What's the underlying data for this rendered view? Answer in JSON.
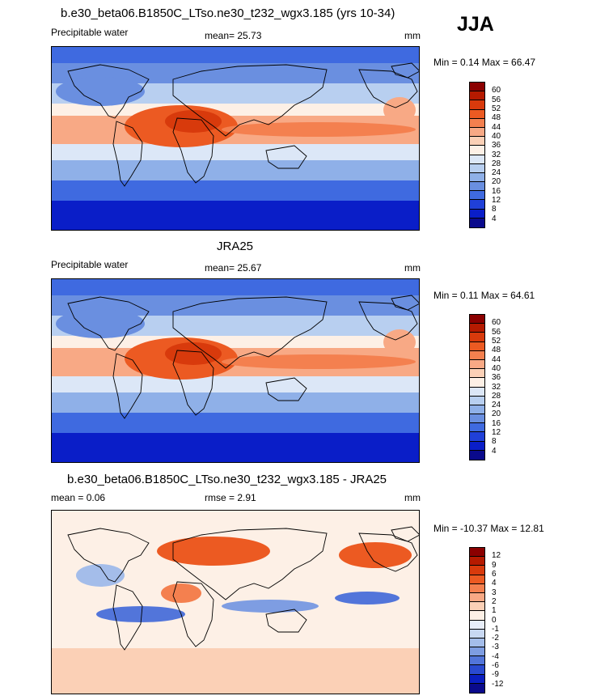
{
  "season": "JJA",
  "panels": [
    {
      "title": "b.e30_beta06.B1850C_LTso.ne30_t232_wgx3.185 (yrs 10-34)",
      "left": "Precipitable water",
      "center": "mean=  25.73",
      "right": "mm",
      "minmax": "Min =  0.14 Max =  66.47",
      "levels": [
        "60",
        "56",
        "52",
        "48",
        "44",
        "40",
        "36",
        "32",
        "28",
        "24",
        "20",
        "16",
        "12",
        "8",
        "4"
      ],
      "colors": [
        "#8b0000",
        "#b51a00",
        "#d83a0c",
        "#ec5a22",
        "#f4804f",
        "#f8a985",
        "#fbd0b6",
        "#fdf0e6",
        "#dce7f7",
        "#b8cff0",
        "#8fb0e8",
        "#6a8fe0",
        "#3f6ae0",
        "#2040d8",
        "#0a1ec8",
        "#0a0a8c"
      ],
      "style": "field"
    },
    {
      "title": "JRA25",
      "left": "Precipitable water",
      "center": "mean=  25.67",
      "right": "mm",
      "minmax": "Min =  0.11 Max =  64.61",
      "levels": [
        "60",
        "56",
        "52",
        "48",
        "44",
        "40",
        "36",
        "32",
        "28",
        "24",
        "20",
        "16",
        "12",
        "8",
        "4"
      ],
      "colors": [
        "#8b0000",
        "#b51a00",
        "#d83a0c",
        "#ec5a22",
        "#f4804f",
        "#f8a985",
        "#fbd0b6",
        "#fdf0e6",
        "#dce7f7",
        "#b8cff0",
        "#8fb0e8",
        "#6a8fe0",
        "#3f6ae0",
        "#2040d8",
        "#0a1ec8",
        "#0a0a8c"
      ],
      "style": "field"
    },
    {
      "title": "b.e30_beta06.B1850C_LTso.ne30_t232_wgx3.185 - JRA25",
      "left": "mean =   0.06",
      "center": "rmse =   2.91",
      "right": "mm",
      "minmax": "Min = -10.37 Max =  12.81",
      "levels": [
        "12",
        "9",
        "6",
        "4",
        "3",
        "2",
        "1",
        "0",
        "-1",
        "-2",
        "-3",
        "-4",
        "-6",
        "-9",
        "-12"
      ],
      "colors": [
        "#8b0000",
        "#b51a00",
        "#d83a0c",
        "#ec5a22",
        "#f4804f",
        "#f8a985",
        "#fbd0b6",
        "#fdf0e6",
        "#e8eef9",
        "#c8d8f2",
        "#a4bdea",
        "#7e9de2",
        "#5275da",
        "#2a4ad0",
        "#0a1ec0",
        "#0a0a8c"
      ],
      "style": "diff"
    }
  ]
}
